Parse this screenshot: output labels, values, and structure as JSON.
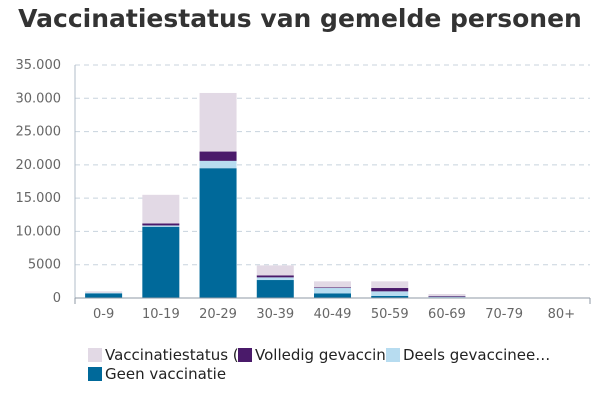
{
  "chart_data": {
    "type": "bar",
    "stacked": true,
    "title": "Vaccinatiestatus van gemelde personen",
    "xlabel": "",
    "ylabel": "",
    "categories": [
      "0-9",
      "10-19",
      "20-29",
      "30-39",
      "40-49",
      "50-59",
      "60-69",
      "70-79",
      "80+"
    ],
    "ylim": [
      0,
      35000
    ],
    "yticks": [
      0,
      5000,
      10000,
      15000,
      20000,
      25000,
      30000,
      35000
    ],
    "ytick_labels": [
      "0",
      "5000",
      "10.000",
      "15.000",
      "20.000",
      "25.000",
      "30.000",
      "35.000"
    ],
    "grid": true,
    "legend_position": "bottom",
    "series": [
      {
        "name": "Geen vaccinatie",
        "color": "#00699a",
        "values": [
          700,
          10700,
          19500,
          2700,
          700,
          300,
          100,
          0,
          0
        ]
      },
      {
        "name": "Deels gevaccinee…",
        "color": "#b7dcf0",
        "values": [
          100,
          200,
          1100,
          400,
          800,
          700,
          100,
          0,
          0
        ]
      },
      {
        "name": "Volledig gevaccin…",
        "color": "#4a1a6a",
        "values": [
          0,
          300,
          1400,
          300,
          100,
          500,
          100,
          0,
          0
        ]
      },
      {
        "name": "Vaccinatiestatus (…",
        "color": "#e2d9e5",
        "values": [
          200,
          4300,
          8800,
          1500,
          900,
          1000,
          300,
          0,
          0
        ]
      }
    ]
  }
}
